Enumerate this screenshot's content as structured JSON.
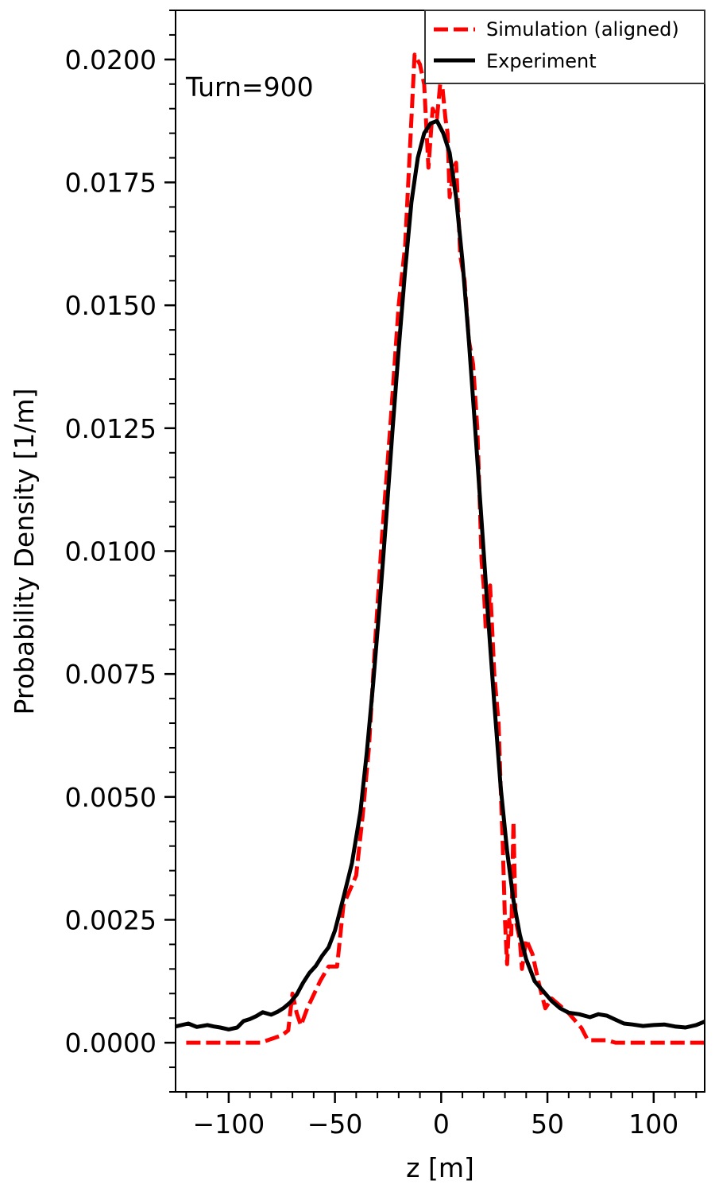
{
  "chart_data": {
    "type": "line",
    "xlabel": "z [m]",
    "ylabel": "Probability Density [1/m]",
    "annotation": "Turn=900",
    "xlim": [
      -125,
      124
    ],
    "ylim": [
      -0.001,
      0.021
    ],
    "x_ticks": [
      -100,
      -50,
      0,
      50,
      100
    ],
    "x_tick_labels": [
      "−100",
      "−50",
      "0",
      "50",
      "100"
    ],
    "y_ticks": [
      0.0,
      0.0025,
      0.005,
      0.0075,
      0.01,
      0.0125,
      0.015,
      0.0175,
      0.02
    ],
    "y_tick_labels": [
      "0.0000",
      "0.0025",
      "0.0050",
      "0.0075",
      "0.0100",
      "0.0125",
      "0.0150",
      "0.0175",
      "0.0200"
    ],
    "x_minor_step": 10,
    "y_minor_step": 0.0005,
    "grid": false,
    "legend_position": "top-right",
    "series": [
      {
        "name": "Simulation (aligned)",
        "color": "#ff0000",
        "style": "dashed",
        "points": [
          [
            -120,
            0.0
          ],
          [
            -85,
            0.0
          ],
          [
            -75,
            0.00015
          ],
          [
            -72,
            0.00025
          ],
          [
            -70,
            0.001
          ],
          [
            -68,
            0.0006
          ],
          [
            -66,
            0.00035
          ],
          [
            -63,
            0.0007
          ],
          [
            -57,
            0.00125
          ],
          [
            -53,
            0.00155
          ],
          [
            -49,
            0.00155
          ],
          [
            -46,
            0.0028
          ],
          [
            -40,
            0.0034
          ],
          [
            -37,
            0.0046
          ],
          [
            -34,
            0.006
          ],
          [
            -31,
            0.0082
          ],
          [
            -28,
            0.0102
          ],
          [
            -24,
            0.0125
          ],
          [
            -20,
            0.015
          ],
          [
            -17,
            0.0162
          ],
          [
            -14,
            0.0188
          ],
          [
            -12.5,
            0.0201
          ],
          [
            -10,
            0.0199
          ],
          [
            -8,
            0.0195
          ],
          [
            -6,
            0.0178
          ],
          [
            -4,
            0.019
          ],
          [
            -2,
            0.0188
          ],
          [
            0,
            0.0197
          ],
          [
            2,
            0.0188
          ],
          [
            3,
            0.0185
          ],
          [
            4,
            0.0172
          ],
          [
            6,
            0.0178
          ],
          [
            7,
            0.0179
          ],
          [
            9,
            0.016
          ],
          [
            11,
            0.0155
          ],
          [
            13,
            0.0143
          ],
          [
            15,
            0.0138
          ],
          [
            17,
            0.0125
          ],
          [
            18,
            0.0112
          ],
          [
            19,
            0.0098
          ],
          [
            20,
            0.0093
          ],
          [
            21,
            0.0084
          ],
          [
            22,
            0.0084
          ],
          [
            23,
            0.0093
          ],
          [
            25,
            0.0075
          ],
          [
            27,
            0.0065
          ],
          [
            28,
            0.0052
          ],
          [
            29,
            0.004
          ],
          [
            30,
            0.0025
          ],
          [
            31,
            0.0016
          ],
          [
            32,
            0.0025
          ],
          [
            33,
            0.0022
          ],
          [
            34,
            0.0045
          ],
          [
            35,
            0.0025
          ],
          [
            37,
            0.0021
          ],
          [
            38,
            0.0015
          ],
          [
            40,
            0.0021
          ],
          [
            43,
            0.0018
          ],
          [
            46,
            0.0012
          ],
          [
            49,
            0.0007
          ],
          [
            52,
            0.0009
          ],
          [
            56,
            0.00075
          ],
          [
            60,
            0.0006
          ],
          [
            66,
            0.0003
          ],
          [
            69,
            5e-05
          ],
          [
            78,
            5e-05
          ],
          [
            82,
            0.0
          ],
          [
            124,
            0.0
          ]
        ]
      },
      {
        "name": "Experiment",
        "color": "#000000",
        "style": "solid",
        "points": [
          [
            -125,
            0.00033
          ],
          [
            -119,
            0.00039
          ],
          [
            -115,
            0.00032
          ],
          [
            -110,
            0.00036
          ],
          [
            -107,
            0.00033
          ],
          [
            -104,
            0.00031
          ],
          [
            -100,
            0.00027
          ],
          [
            -96,
            0.00031
          ],
          [
            -93,
            0.00044
          ],
          [
            -90,
            0.00048
          ],
          [
            -87,
            0.00054
          ],
          [
            -84,
            0.00062
          ],
          [
            -80,
            0.00057
          ],
          [
            -77,
            0.00063
          ],
          [
            -74,
            0.00071
          ],
          [
            -71,
            0.00082
          ],
          [
            -68,
            0.00098
          ],
          [
            -65,
            0.00122
          ],
          [
            -62,
            0.00142
          ],
          [
            -59,
            0.00156
          ],
          [
            -56,
            0.00177
          ],
          [
            -53,
            0.00194
          ],
          [
            -50,
            0.00228
          ],
          [
            -46,
            0.00295
          ],
          [
            -42,
            0.00365
          ],
          [
            -38,
            0.0047
          ],
          [
            -35,
            0.0059
          ],
          [
            -32,
            0.0073
          ],
          [
            -29,
            0.0089
          ],
          [
            -26,
            0.0106
          ],
          [
            -23,
            0.0124
          ],
          [
            -20,
            0.0141
          ],
          [
            -17,
            0.0157
          ],
          [
            -14,
            0.0171
          ],
          [
            -11,
            0.018
          ],
          [
            -8,
            0.0185
          ],
          [
            -5,
            0.0187
          ],
          [
            -2,
            0.01875
          ],
          [
            1,
            0.0185
          ],
          [
            4,
            0.0181
          ],
          [
            7,
            0.0172
          ],
          [
            10,
            0.0159
          ],
          [
            13,
            0.0143
          ],
          [
            16,
            0.0125
          ],
          [
            19,
            0.0106
          ],
          [
            22,
            0.0087
          ],
          [
            25,
            0.0069
          ],
          [
            28,
            0.0052
          ],
          [
            31,
            0.0039
          ],
          [
            34,
            0.0029
          ],
          [
            37,
            0.0022
          ],
          [
            40,
            0.0017
          ],
          [
            44,
            0.00125
          ],
          [
            48,
            0.00105
          ],
          [
            52,
            0.00085
          ],
          [
            56,
            0.0007
          ],
          [
            60,
            0.00061
          ],
          [
            65,
            0.00058
          ],
          [
            70,
            0.00052
          ],
          [
            74,
            0.00058
          ],
          [
            78,
            0.00055
          ],
          [
            82,
            0.00047
          ],
          [
            86,
            0.00039
          ],
          [
            90,
            0.00037
          ],
          [
            95,
            0.00034
          ],
          [
            100,
            0.00036
          ],
          [
            105,
            0.00037
          ],
          [
            110,
            0.00033
          ],
          [
            115,
            0.00031
          ],
          [
            120,
            0.00036
          ],
          [
            124,
            0.00043
          ]
        ]
      }
    ]
  }
}
